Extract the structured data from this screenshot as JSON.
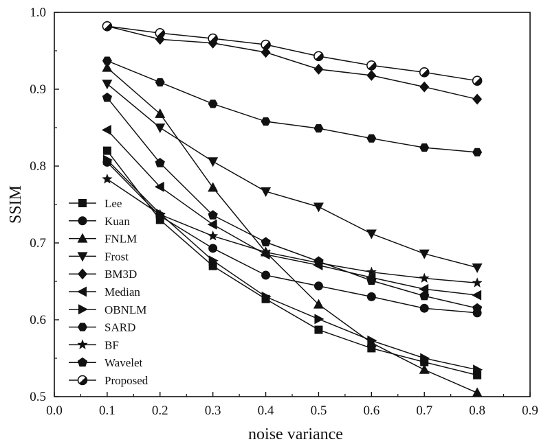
{
  "chart_data": {
    "type": "line",
    "title": "",
    "xlabel": "noise variance",
    "ylabel": "SSIM",
    "xlim": [
      0.0,
      0.9
    ],
    "ylim": [
      0.5,
      1.0
    ],
    "xticks": [
      "0.0",
      "0.1",
      "0.2",
      "0.3",
      "0.4",
      "0.5",
      "0.6",
      "0.7",
      "0.8",
      "0.9"
    ],
    "yticks": [
      "0.5",
      "0.6",
      "0.7",
      "0.8",
      "0.9",
      "1.0"
    ],
    "grid": false,
    "legend_position": "bottom-left",
    "x": [
      0.1,
      0.2,
      0.3,
      0.4,
      0.5,
      0.6,
      0.7,
      0.8
    ],
    "series": [
      {
        "name": "Lee",
        "marker": "square",
        "values": [
          0.82,
          0.73,
          0.67,
          0.627,
          0.587,
          0.563,
          0.545,
          0.528
        ]
      },
      {
        "name": "Kuan",
        "marker": "circle",
        "values": [
          0.805,
          0.735,
          0.693,
          0.658,
          0.644,
          0.63,
          0.615,
          0.609
        ]
      },
      {
        "name": "FNLM",
        "marker": "triangle-up",
        "values": [
          0.928,
          0.868,
          0.772,
          0.688,
          0.62,
          0.57,
          0.535,
          0.505
        ]
      },
      {
        "name": "Frost",
        "marker": "triangle-down",
        "values": [
          0.907,
          0.85,
          0.806,
          0.767,
          0.747,
          0.712,
          0.686,
          0.668
        ]
      },
      {
        "name": "BM3D",
        "marker": "diamond",
        "values": [
          0.982,
          0.965,
          0.96,
          0.948,
          0.926,
          0.918,
          0.903,
          0.887
        ]
      },
      {
        "name": "Median",
        "marker": "triangle-left",
        "values": [
          0.847,
          0.773,
          0.724,
          0.685,
          0.671,
          0.655,
          0.64,
          0.632
        ]
      },
      {
        "name": "OBNLM",
        "marker": "triangle-right",
        "values": [
          0.808,
          0.738,
          0.677,
          0.63,
          0.601,
          0.573,
          0.55,
          0.535
        ]
      },
      {
        "name": "SARD",
        "marker": "hexagon",
        "values": [
          0.937,
          0.909,
          0.881,
          0.858,
          0.849,
          0.836,
          0.824,
          0.818
        ]
      },
      {
        "name": "BF",
        "marker": "star",
        "values": [
          0.783,
          0.737,
          0.709,
          0.688,
          0.674,
          0.662,
          0.654,
          0.648
        ]
      },
      {
        "name": "Wavelet",
        "marker": "pentagon",
        "values": [
          0.889,
          0.804,
          0.736,
          0.701,
          0.676,
          0.651,
          0.631,
          0.615
        ]
      },
      {
        "name": "Proposed",
        "marker": "circle-half",
        "values": [
          0.982,
          0.973,
          0.966,
          0.958,
          0.943,
          0.931,
          0.922,
          0.911
        ]
      }
    ]
  }
}
